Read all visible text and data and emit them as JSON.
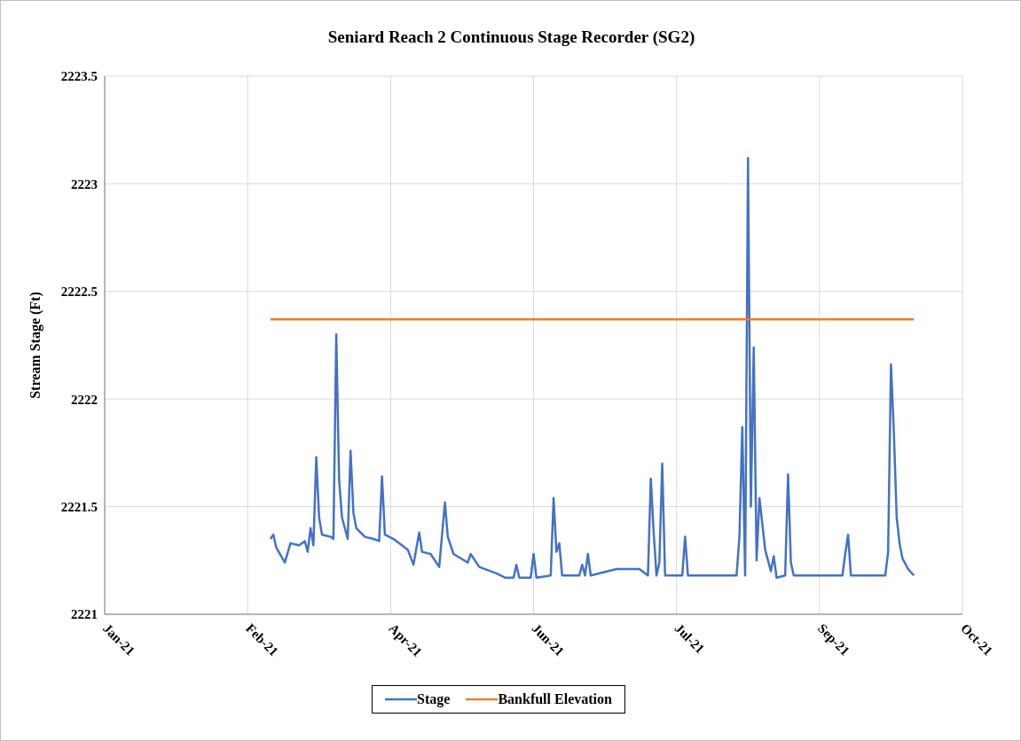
{
  "chart_data": {
    "type": "line",
    "title": "Seniard Reach 2 Continuous Stage Recorder (SG2)",
    "ylabel": "Stream Stage (Ft)",
    "xlim": [
      "2021-01-04",
      "2021-10-31"
    ],
    "xticks": [
      {
        "value": "2021-01-04",
        "label": "Jan-21"
      },
      {
        "value": "2021-02-23",
        "label": "Feb-21"
      },
      {
        "value": "2021-04-14",
        "label": "Apr-21"
      },
      {
        "value": "2021-06-03",
        "label": "Jun-21"
      },
      {
        "value": "2021-07-23",
        "label": "Jul-21"
      },
      {
        "value": "2021-09-11",
        "label": "Sep-21"
      },
      {
        "value": "2021-10-31",
        "label": "Oct-21"
      }
    ],
    "ylim": [
      2221,
      2223.5
    ],
    "yticks": [
      2221,
      2221.5,
      2222,
      2222.5,
      2223,
      2223.5
    ],
    "grid": true,
    "legend": "bottom",
    "marker": "none",
    "line_style": "solid",
    "series": [
      {
        "name": "Stage",
        "color": "#4472c4",
        "x": [
          "2021-03-03",
          "2021-03-04",
          "2021-03-05",
          "2021-03-08",
          "2021-03-10",
          "2021-03-13",
          "2021-03-15",
          "2021-03-16",
          "2021-03-17",
          "2021-03-18",
          "2021-03-19",
          "2021-03-20",
          "2021-03-21",
          "2021-03-24",
          "2021-03-25",
          "2021-03-26",
          "2021-03-27",
          "2021-03-28",
          "2021-03-30",
          "2021-03-31",
          "2021-04-01",
          "2021-04-02",
          "2021-04-05",
          "2021-04-08",
          "2021-04-10",
          "2021-04-11",
          "2021-04-12",
          "2021-04-15",
          "2021-04-18",
          "2021-04-20",
          "2021-04-22",
          "2021-04-24",
          "2021-04-25",
          "2021-04-28",
          "2021-05-01",
          "2021-05-03",
          "2021-05-04",
          "2021-05-06",
          "2021-05-11",
          "2021-05-12",
          "2021-05-15",
          "2021-05-21",
          "2021-05-24",
          "2021-05-27",
          "2021-05-28",
          "2021-05-29",
          "2021-06-02",
          "2021-06-03",
          "2021-06-04",
          "2021-06-09",
          "2021-06-10",
          "2021-06-11",
          "2021-06-12",
          "2021-06-13",
          "2021-06-19",
          "2021-06-20",
          "2021-06-21",
          "2021-06-22",
          "2021-06-23",
          "2021-07-02",
          "2021-07-10",
          "2021-07-13",
          "2021-07-14",
          "2021-07-15",
          "2021-07-16",
          "2021-07-17",
          "2021-07-18",
          "2021-07-19",
          "2021-07-25",
          "2021-07-26",
          "2021-07-27",
          "2021-08-13",
          "2021-08-14",
          "2021-08-15",
          "2021-08-16",
          "2021-08-17",
          "2021-08-18",
          "2021-08-19",
          "2021-08-20",
          "2021-08-21",
          "2021-08-23",
          "2021-08-25",
          "2021-08-26",
          "2021-08-27",
          "2021-08-30",
          "2021-08-31",
          "2021-09-01",
          "2021-09-02",
          "2021-09-19",
          "2021-09-20",
          "2021-09-21",
          "2021-09-22",
          "2021-10-04",
          "2021-10-05",
          "2021-10-06",
          "2021-10-07",
          "2021-10-08",
          "2021-10-09",
          "2021-10-10",
          "2021-10-12",
          "2021-10-14"
        ],
        "values": [
          2221.35,
          2221.37,
          2221.31,
          2221.24,
          2221.33,
          2221.32,
          2221.34,
          2221.29,
          2221.4,
          2221.32,
          2221.73,
          2221.45,
          2221.37,
          2221.36,
          2221.35,
          2222.3,
          2221.62,
          2221.45,
          2221.35,
          2221.76,
          2221.47,
          2221.4,
          2221.36,
          2221.35,
          2221.34,
          2221.64,
          2221.37,
          2221.35,
          2221.32,
          2221.3,
          2221.23,
          2221.38,
          2221.29,
          2221.28,
          2221.22,
          2221.52,
          2221.36,
          2221.28,
          2221.24,
          2221.28,
          2221.22,
          2221.19,
          2221.17,
          2221.17,
          2221.23,
          2221.17,
          2221.17,
          2221.28,
          2221.17,
          2221.18,
          2221.54,
          2221.29,
          2221.33,
          2221.18,
          2221.18,
          2221.23,
          2221.18,
          2221.28,
          2221.18,
          2221.21,
          2221.21,
          2221.18,
          2221.63,
          2221.38,
          2221.18,
          2221.24,
          2221.7,
          2221.18,
          2221.18,
          2221.36,
          2221.18,
          2221.18,
          2221.36,
          2221.87,
          2221.18,
          2223.12,
          2221.5,
          2222.24,
          2221.25,
          2221.54,
          2221.3,
          2221.2,
          2221.27,
          2221.17,
          2221.18,
          2221.65,
          2221.24,
          2221.18,
          2221.18,
          2221.28,
          2221.37,
          2221.18,
          2221.18,
          2221.29,
          2222.16,
          2221.85,
          2221.45,
          2221.33,
          2221.26,
          2221.21,
          2221.18
        ]
      },
      {
        "name": "Bankfull Elevation",
        "color": "#ed7d31",
        "x": [
          "2021-03-03",
          "2021-10-14"
        ],
        "values": [
          2222.37,
          2222.37
        ]
      }
    ]
  }
}
